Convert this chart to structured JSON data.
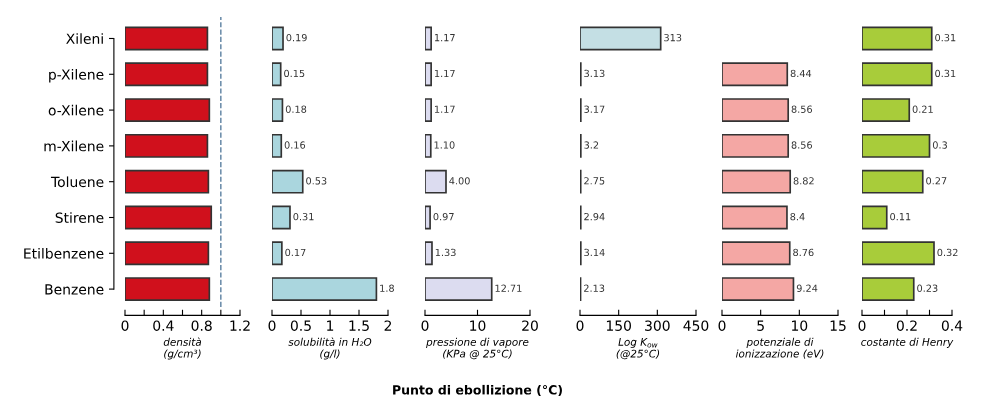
{
  "chart_data": [
    {
      "type": "bar",
      "orientation": "horizontal",
      "xlabel": "densità\n(g/cm³)",
      "categories": [
        "Xileni",
        "p-Xilene",
        "o-Xilene",
        "m-Xilene",
        "Toluene",
        "Stirene",
        "Etilbenzene",
        "Benzene"
      ],
      "values": [
        0.86,
        0.86,
        0.88,
        0.86,
        0.87,
        0.9,
        0.87,
        0.88
      ],
      "color": "#d0101c",
      "xlim": [
        0,
        1.2
      ],
      "xticks": [
        0,
        {
          "value": 0.2,
          "label": null
        },
        0.4,
        {
          "value": 0.6,
          "label": null
        },
        0.8,
        {
          "value": 1.0,
          "label": null
        },
        1.2
      ],
      "ref_lines": [
        {
          "axis": "x",
          "value": 1.0,
          "label": null,
          "color": "#5a7fa0",
          "line_style": "dashed"
        }
      ]
    },
    {
      "type": "bar",
      "orientation": "horizontal",
      "xlabel": "solubilità in H₂O\n(g/l)",
      "values": [
        0.19,
        0.15,
        0.18,
        0.16,
        0.53,
        0.31,
        0.17,
        1.8
      ],
      "value_labels": [
        "0.19",
        "0.15",
        "0.18",
        "0.16",
        "0.53",
        "0.31",
        "0.17",
        "1.8"
      ],
      "color": "#aad6de",
      "xlim": [
        0,
        2
      ],
      "xticks": [
        0,
        0.5,
        1,
        1.5,
        2
      ],
      "tick_labels": "x"
    },
    {
      "type": "bar",
      "orientation": "horizontal",
      "xlabel": "pressione di vapore\n(KPa @ 25°C)",
      "values": [
        1.17,
        1.17,
        1.17,
        1.1,
        4.0,
        0.97,
        1.33,
        12.71
      ],
      "value_labels": [
        "1.17",
        "1.17",
        "1.17",
        "1.10",
        "4.00",
        "0.97",
        "1.33",
        "12.71"
      ],
      "color": "#dcdcf0",
      "xlim": [
        0,
        20
      ],
      "xticks": [
        0,
        10,
        20
      ],
      "tick_labels": "x",
      "annotations": [
        "Punto di ebollizione (°C)"
      ]
    },
    {
      "type": "bar",
      "orientation": "horizontal",
      "xlabel": "Log K$_{ow}$\n(@25°C)",
      "values": [
        313,
        3.13,
        3.17,
        3.2,
        2.75,
        2.94,
        3.14,
        2.13
      ],
      "value_labels": [
        "313",
        "3.13",
        "3.17",
        "3.2",
        "2.75",
        "2.94",
        "3.14",
        "2.13"
      ],
      "color": "#c4dfe4",
      "xlim": [
        0,
        450
      ],
      "xticks": [
        0,
        150,
        300,
        450
      ],
      "tick_labels": "x"
    },
    {
      "type": "bar",
      "orientation": "horizontal",
      "xlabel": "potenziale di\nionizzazione (eV)",
      "values": [
        null,
        8.44,
        8.56,
        8.56,
        8.82,
        8.4,
        8.76,
        9.24
      ],
      "value_labels": [
        null,
        "8.44",
        "8.56",
        "8.56",
        "8.82",
        "8.4",
        "8.76",
        "9.24"
      ],
      "color": "#f4a7a4",
      "xlim": [
        0,
        15
      ],
      "xticks": [
        0,
        5,
        10,
        15
      ],
      "tick_labels": "x"
    },
    {
      "type": "bar",
      "orientation": "horizontal",
      "xlabel": "costante di Henry",
      "values": [
        0.31,
        0.31,
        0.21,
        0.3,
        0.27,
        0.11,
        0.32,
        0.23
      ],
      "value_labels": [
        "0.31",
        "0.31",
        "0.21",
        "0.3",
        "0.27",
        "0.11",
        "0.32",
        "0.23"
      ],
      "color": "#a8cc3a",
      "xlim": [
        0,
        0.4
      ],
      "xticks": [
        0,
        {
          "value": 0.1,
          "label": null
        },
        0.2,
        {
          "value": 0.3,
          "label": null
        },
        0.4
      ],
      "tick_labels": "x"
    }
  ]
}
